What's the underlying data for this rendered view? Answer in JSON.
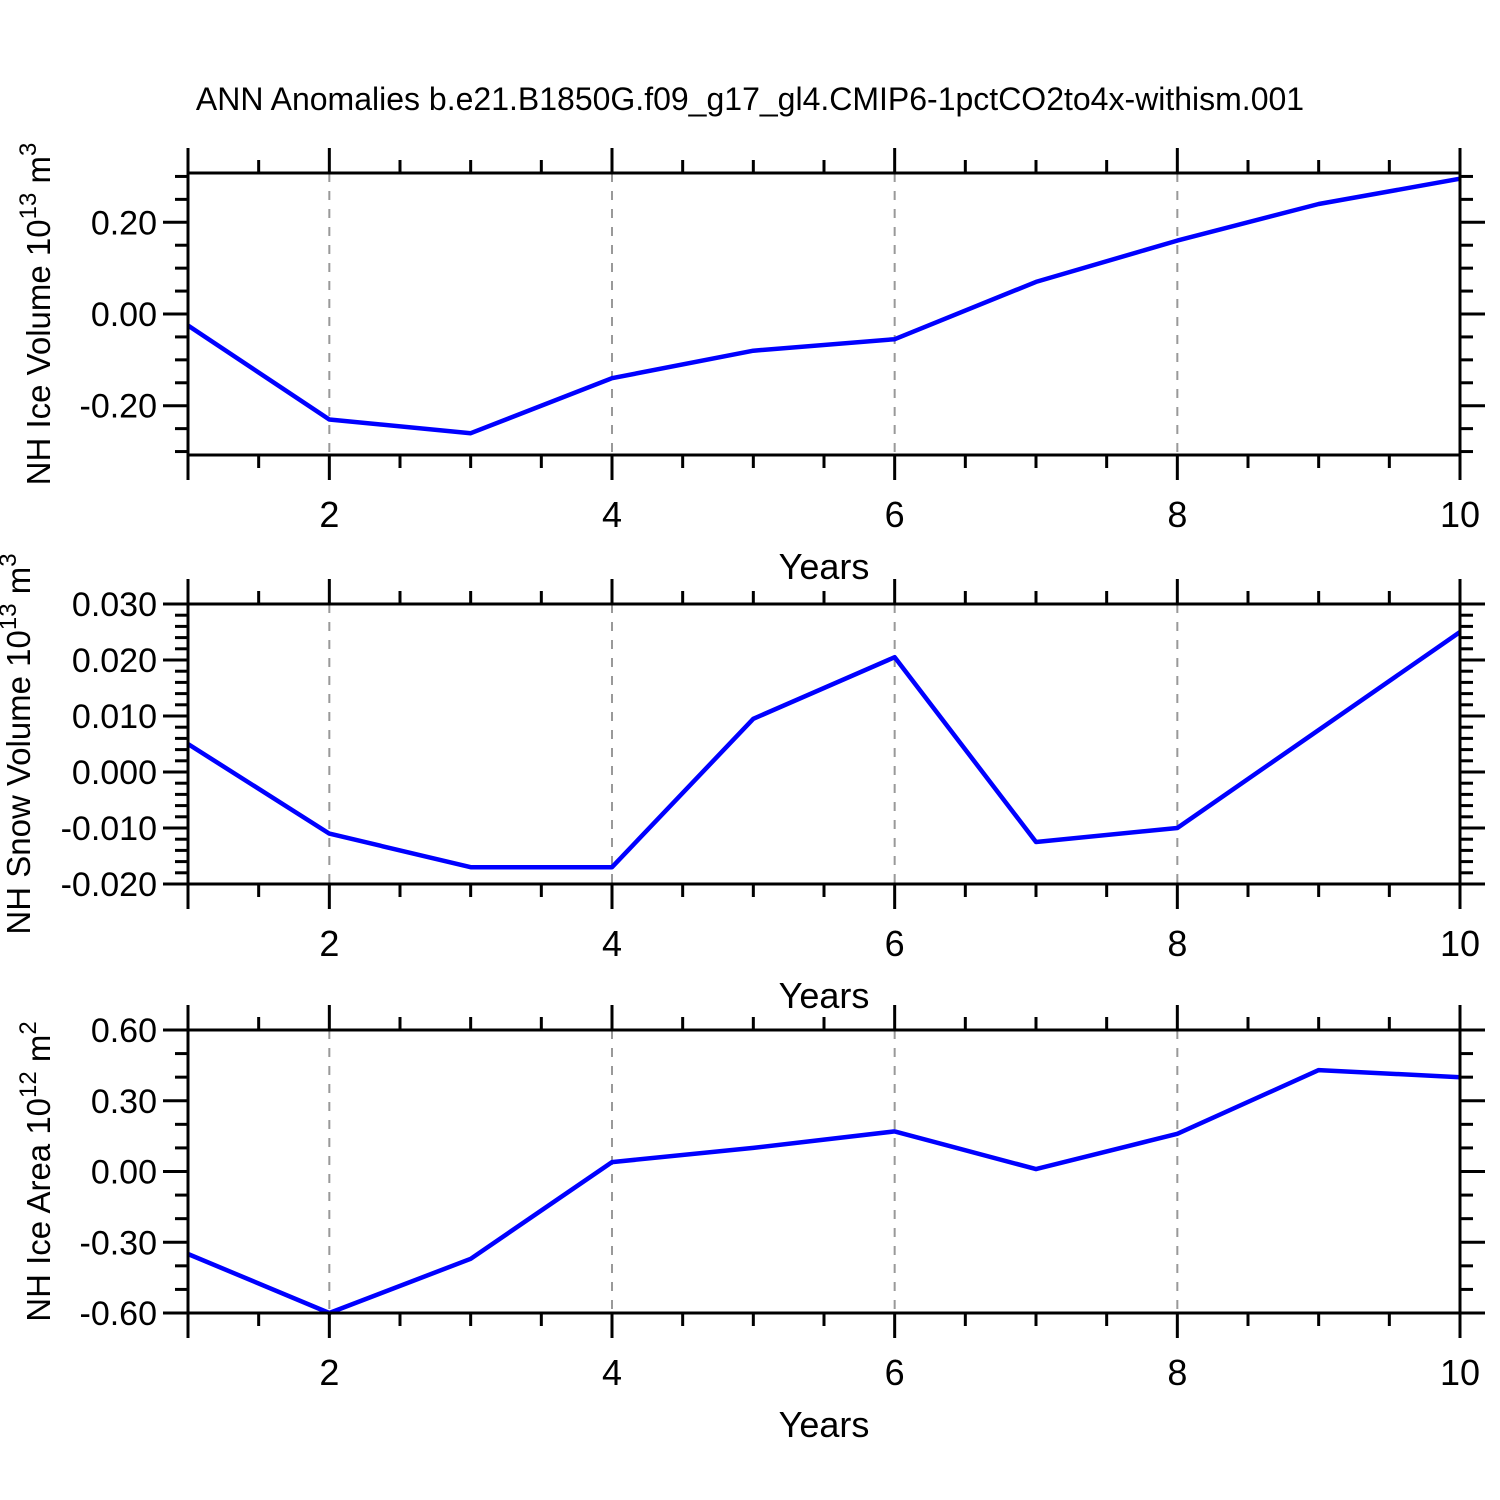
{
  "title": "ANN Anomalies b.e21.B1850G.f09_g17_gl4.CMIP6-1pctCO2to4x-withism.001",
  "colors": {
    "line": "#0000FF",
    "grid": "#999999",
    "axis": "#000000",
    "background": "#FFFFFF"
  },
  "chart_data": [
    {
      "type": "line",
      "name": "nh-ice-volume",
      "ylabel_segments": [
        {
          "text": "NH Ice Volume 10"
        },
        {
          "text": "13",
          "sup": true
        },
        {
          "text": " m"
        },
        {
          "text": "3",
          "sup": true
        }
      ],
      "xlabel": "Years",
      "x": [
        1,
        2,
        3,
        4,
        5,
        6,
        7,
        8,
        9,
        10
      ],
      "values": [
        -0.025,
        -0.23,
        -0.26,
        -0.14,
        -0.08,
        -0.055,
        0.07,
        0.16,
        0.24,
        0.295
      ],
      "xlim": [
        1,
        10
      ],
      "ylim": [
        -0.3075,
        0.3075
      ],
      "yticks_major": [
        {
          "v": 0.2,
          "label": "0.20"
        },
        {
          "v": 0.0,
          "label": "0.00"
        },
        {
          "v": -0.2,
          "label": "-0.20"
        }
      ],
      "ytick_minor_step": 0.05,
      "xticks_labeled": [
        {
          "v": 2,
          "label": "2"
        },
        {
          "v": 4,
          "label": "4"
        },
        {
          "v": 6,
          "label": "6"
        },
        {
          "v": 8,
          "label": "8"
        },
        {
          "v": 10,
          "label": "10"
        }
      ],
      "xtick_minor_step": 0.5,
      "grid_x": [
        2,
        4,
        6,
        8
      ],
      "grid_on": true,
      "legend": "none"
    },
    {
      "type": "line",
      "name": "nh-snow-volume",
      "ylabel_segments": [
        {
          "text": "NH Snow Volume 10"
        },
        {
          "text": "13",
          "sup": true
        },
        {
          "text": " m"
        },
        {
          "text": "3",
          "sup": true
        }
      ],
      "xlabel": "Years",
      "x": [
        1,
        2,
        3,
        4,
        5,
        6,
        7,
        8,
        9,
        10
      ],
      "values": [
        0.005,
        -0.011,
        -0.017,
        -0.017,
        0.0095,
        0.0205,
        -0.0125,
        -0.01,
        0.0075,
        0.025
      ],
      "xlim": [
        1,
        10
      ],
      "ylim": [
        -0.02,
        0.03
      ],
      "yticks_major": [
        {
          "v": 0.03,
          "label": "0.030"
        },
        {
          "v": 0.02,
          "label": "0.020"
        },
        {
          "v": 0.01,
          "label": "0.010"
        },
        {
          "v": 0.0,
          "label": "0.000"
        },
        {
          "v": -0.01,
          "label": "-0.010"
        },
        {
          "v": -0.02,
          "label": "-0.020"
        }
      ],
      "ytick_minor_step": 0.002,
      "xticks_labeled": [
        {
          "v": 2,
          "label": "2"
        },
        {
          "v": 4,
          "label": "4"
        },
        {
          "v": 6,
          "label": "6"
        },
        {
          "v": 8,
          "label": "8"
        },
        {
          "v": 10,
          "label": "10"
        }
      ],
      "xtick_minor_step": 0.5,
      "grid_x": [
        2,
        4,
        6,
        8
      ],
      "grid_on": true,
      "legend": "none"
    },
    {
      "type": "line",
      "name": "nh-ice-area",
      "ylabel_segments": [
        {
          "text": "NH Ice Area 10"
        },
        {
          "text": "12",
          "sup": true
        },
        {
          "text": " m"
        },
        {
          "text": "2",
          "sup": true
        }
      ],
      "xlabel": "Years",
      "x": [
        1,
        2,
        3,
        4,
        5,
        6,
        7,
        8,
        9,
        10
      ],
      "values": [
        -0.35,
        -0.6,
        -0.37,
        0.04,
        0.1,
        0.17,
        0.01,
        0.16,
        0.43,
        0.4
      ],
      "xlim": [
        1,
        10
      ],
      "ylim": [
        -0.6,
        0.6
      ],
      "yticks_major": [
        {
          "v": 0.6,
          "label": "0.60"
        },
        {
          "v": 0.3,
          "label": "0.30"
        },
        {
          "v": 0.0,
          "label": "0.00"
        },
        {
          "v": -0.3,
          "label": "-0.30"
        },
        {
          "v": -0.6,
          "label": "-0.60"
        }
      ],
      "ytick_minor_step": 0.1,
      "xticks_labeled": [
        {
          "v": 2,
          "label": "2"
        },
        {
          "v": 4,
          "label": "4"
        },
        {
          "v": 6,
          "label": "6"
        },
        {
          "v": 8,
          "label": "8"
        },
        {
          "v": 10,
          "label": "10"
        }
      ],
      "xtick_minor_step": 0.5,
      "grid_x": [
        2,
        4,
        6,
        8
      ],
      "grid_on": true,
      "legend": "none"
    }
  ]
}
